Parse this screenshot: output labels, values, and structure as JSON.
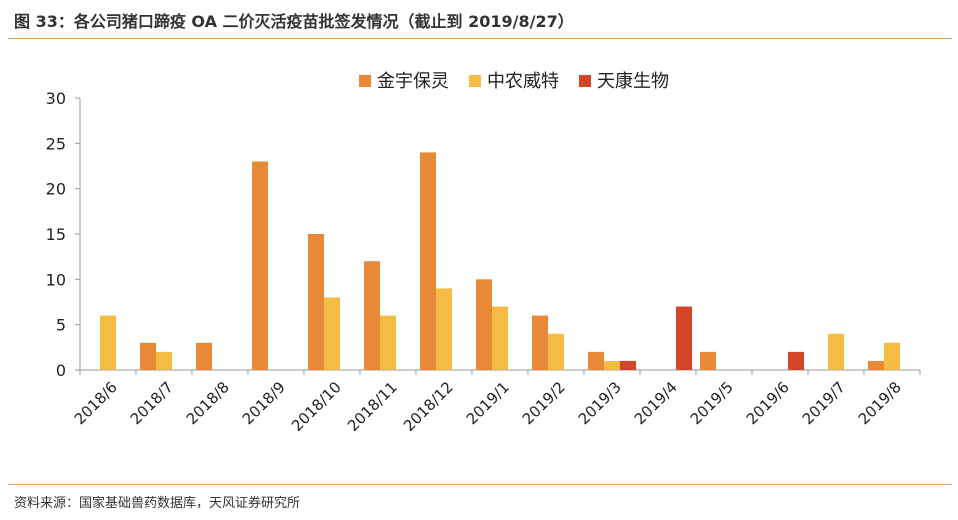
{
  "figure": {
    "title": "图 33：各公司猪口蹄疫 OA 二价灭活疫苗批签发情况（截止到 2019/8/27）",
    "source": "资料来源：国家基础兽药数据库，天风证券研究所"
  },
  "colors": {
    "rule": "#E9A15A",
    "axis": "#999999"
  },
  "chart_data": {
    "type": "bar",
    "title": "",
    "xlabel": "",
    "ylabel": "",
    "ylim": [
      0,
      30
    ],
    "yticks": [
      0,
      5,
      10,
      15,
      20,
      25,
      30
    ],
    "grid": false,
    "legend_position": "top-center",
    "categories": [
      "2018/6",
      "2018/7",
      "2018/8",
      "2018/9",
      "2018/10",
      "2018/11",
      "2018/12",
      "2019/1",
      "2019/2",
      "2019/3",
      "2019/4",
      "2019/5",
      "2019/6",
      "2019/7",
      "2019/8"
    ],
    "series": [
      {
        "name": "金宇保灵",
        "color": "#E8893A",
        "values": [
          0,
          3,
          3,
          23,
          15,
          12,
          24,
          10,
          6,
          2,
          0,
          2,
          0,
          0,
          1
        ]
      },
      {
        "name": "中农威特",
        "color": "#F5BC45",
        "values": [
          6,
          2,
          0,
          0,
          8,
          6,
          9,
          7,
          4,
          1,
          0,
          0,
          0,
          4,
          3
        ]
      },
      {
        "name": "天康生物",
        "color": "#D2472A",
        "values": [
          0,
          0,
          0,
          0,
          0,
          0,
          0,
          0,
          0,
          1,
          7,
          0,
          2,
          0,
          0
        ]
      }
    ]
  }
}
